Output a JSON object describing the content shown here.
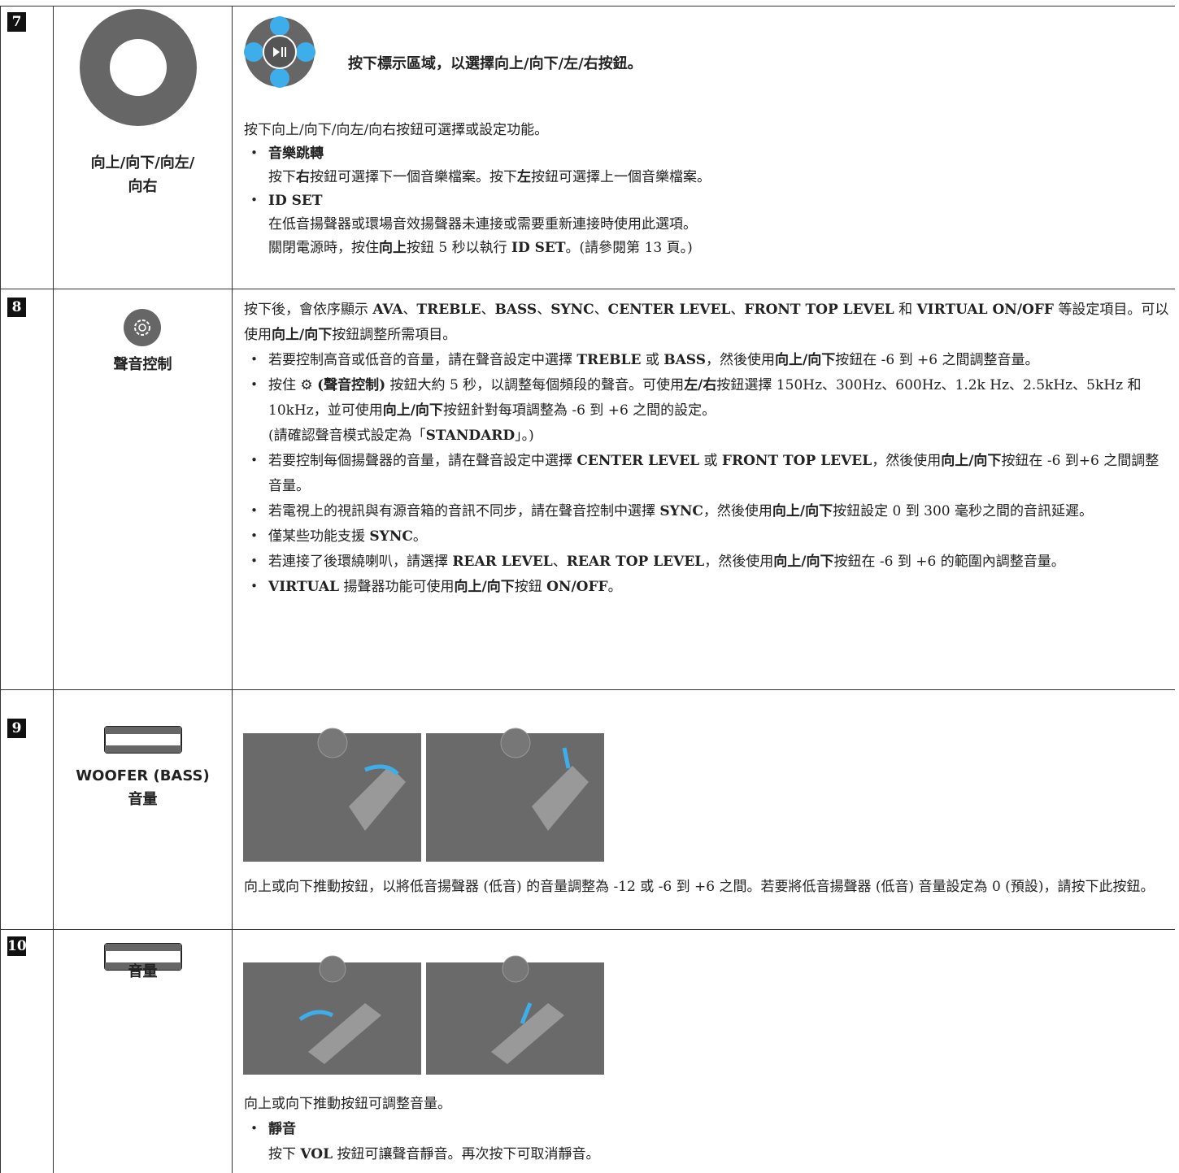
{
  "rows": [
    {
      "number": "7",
      "label": [
        "向上/向下/向左/",
        "向右"
      ],
      "caption": "按下標示區域，以選擇向上/向下/左/右按鈕。",
      "paragraphs": [
        {
          "text": [
            [
              "按下向上/向下/向左/向右按鈕可選擇或設定功能。"
            ]
          ]
        },
        {
          "bullet": [
            [
              {
                "bold": "音樂跳轉"
              }
            ],
            [
              "按下",
              {
                "bold": "右"
              },
              "按鈕可選擇下一個音樂檔案。按下",
              {
                "bold": "左"
              },
              "按鈕可選擇上一個音樂檔案。"
            ]
          ]
        },
        {
          "bullet": [
            [
              {
                "bold": "ID SET"
              }
            ],
            [
              "在低音揚聲器或環場音效揚聲器未連接或需要重新連接時使用此選項。"
            ],
            [
              "關閉電源時，按住",
              {
                "bold": "向上"
              },
              "按鈕 5 秒以執行 ",
              {
                "bold": "ID SET"
              },
              "。(請參閱第 13 頁。)"
            ]
          ]
        }
      ]
    },
    {
      "number": "8",
      "label": [
        "聲音控制"
      ],
      "paragraphs": [
        {
          "text": [
            [
              "按下後，會依序顯示 ",
              {
                "bold": "AVA"
              },
              "、",
              {
                "bold": "TREBLE"
              },
              "、",
              {
                "bold": "BASS"
              },
              "、",
              {
                "bold": "SYNC"
              },
              "、",
              {
                "bold": "CENTER LEVEL"
              },
              "、",
              {
                "bold": "FRONT TOP LEVEL"
              },
              " 和 ",
              {
                "bold": "VIRTUAL ON/OFF"
              },
              " 等設定項目。可以使用",
              {
                "bold": "向上/向下"
              },
              "按鈕調整所需項目。"
            ]
          ]
        },
        {
          "bullet": [
            [
              "若要控制高音或低音的音量，請在聲音設定中選擇 ",
              {
                "bold": "TREBLE"
              },
              " 或 ",
              {
                "bold": "BASS"
              },
              "，然後使用",
              {
                "bold": "向上/向下"
              },
              "按鈕在 -6 到 +6 之間調整音量。"
            ]
          ]
        },
        {
          "bullet": [
            [
              "按住 ⚙ ",
              {
                "bold": "(聲音控制)"
              },
              " 按鈕大約 5 秒，以調整每個頻段的聲音。可使用",
              {
                "bold": "左/右"
              },
              "按鈕選擇 150Hz、300Hz、600Hz、1.2k Hz、2.5kHz、5kHz 和 10kHz，並可使用",
              {
                "bold": "向上/向下"
              },
              "按鈕針對每項調整為 -6 到 +6 之間的設定。"
            ],
            [
              "(請確認聲音模式設定為「",
              {
                "bold": "STANDARD"
              },
              "」。)"
            ]
          ]
        },
        {
          "bullet": [
            [
              "若要控制每個揚聲器的音量，請在聲音設定中選擇 ",
              {
                "bold": "CENTER LEVEL"
              },
              " 或 ",
              {
                "bold": "FRONT TOP LEVEL"
              },
              "，然後使用",
              {
                "bold": "向上/向下"
              },
              "按鈕在 -6 到+6 之間調整音量。"
            ]
          ]
        },
        {
          "bullet": [
            [
              "若電視上的視訊與有源音箱的音訊不同步，請在聲音控制中選擇 ",
              {
                "bold": "SYNC"
              },
              "，然後使用",
              {
                "bold": "向上/向下"
              },
              "按鈕設定 0 到 300 毫秒之間的音訊延遲。"
            ]
          ]
        },
        {
          "bullet": [
            [
              "僅某些功能支援 ",
              {
                "bold": "SYNC"
              },
              "。"
            ]
          ]
        },
        {
          "bullet": [
            [
              "若連接了後環繞喇叭，請選擇 ",
              {
                "bold": "REAR LEVEL"
              },
              "、",
              {
                "bold": "REAR TOP LEVEL"
              },
              "，然後使用",
              {
                "bold": "向上/向下"
              },
              "按鈕在 -6 到 +6 的範圍內調整音量。"
            ]
          ]
        },
        {
          "bullet": [
            [
              {
                "bold": "VIRTUAL"
              },
              " 揚聲器功能可使用",
              {
                "bold": "向上/向下"
              },
              "按鈕 ",
              {
                "bold": "ON/OFF"
              },
              "。"
            ]
          ]
        }
      ]
    },
    {
      "number": "9",
      "label": [
        "WOOFER (BASS)",
        "音量"
      ],
      "paragraphs": [
        {
          "text": [
            [
              "向上或向下推動按鈕，以將低音揚聲器 (低音) 的音量調整為 -12 或 -6 到 +6 之間。若要將低音揚聲器 (低音) 音量設定為 0 (預設)，請按下此按鈕。"
            ]
          ]
        }
      ]
    },
    {
      "number": "10",
      "label": [
        "音量"
      ],
      "paragraphs": [
        {
          "text": [
            [
              "向上或向下推動按鈕可調整音量。"
            ]
          ]
        },
        {
          "bullet": [
            [
              {
                "bold": "靜音"
              }
            ],
            [
              "按下 ",
              {
                "bold": "VOL"
              },
              " 按鈕可讓聲音靜音。再次按下可取消靜音。"
            ]
          ]
        }
      ]
    }
  ]
}
